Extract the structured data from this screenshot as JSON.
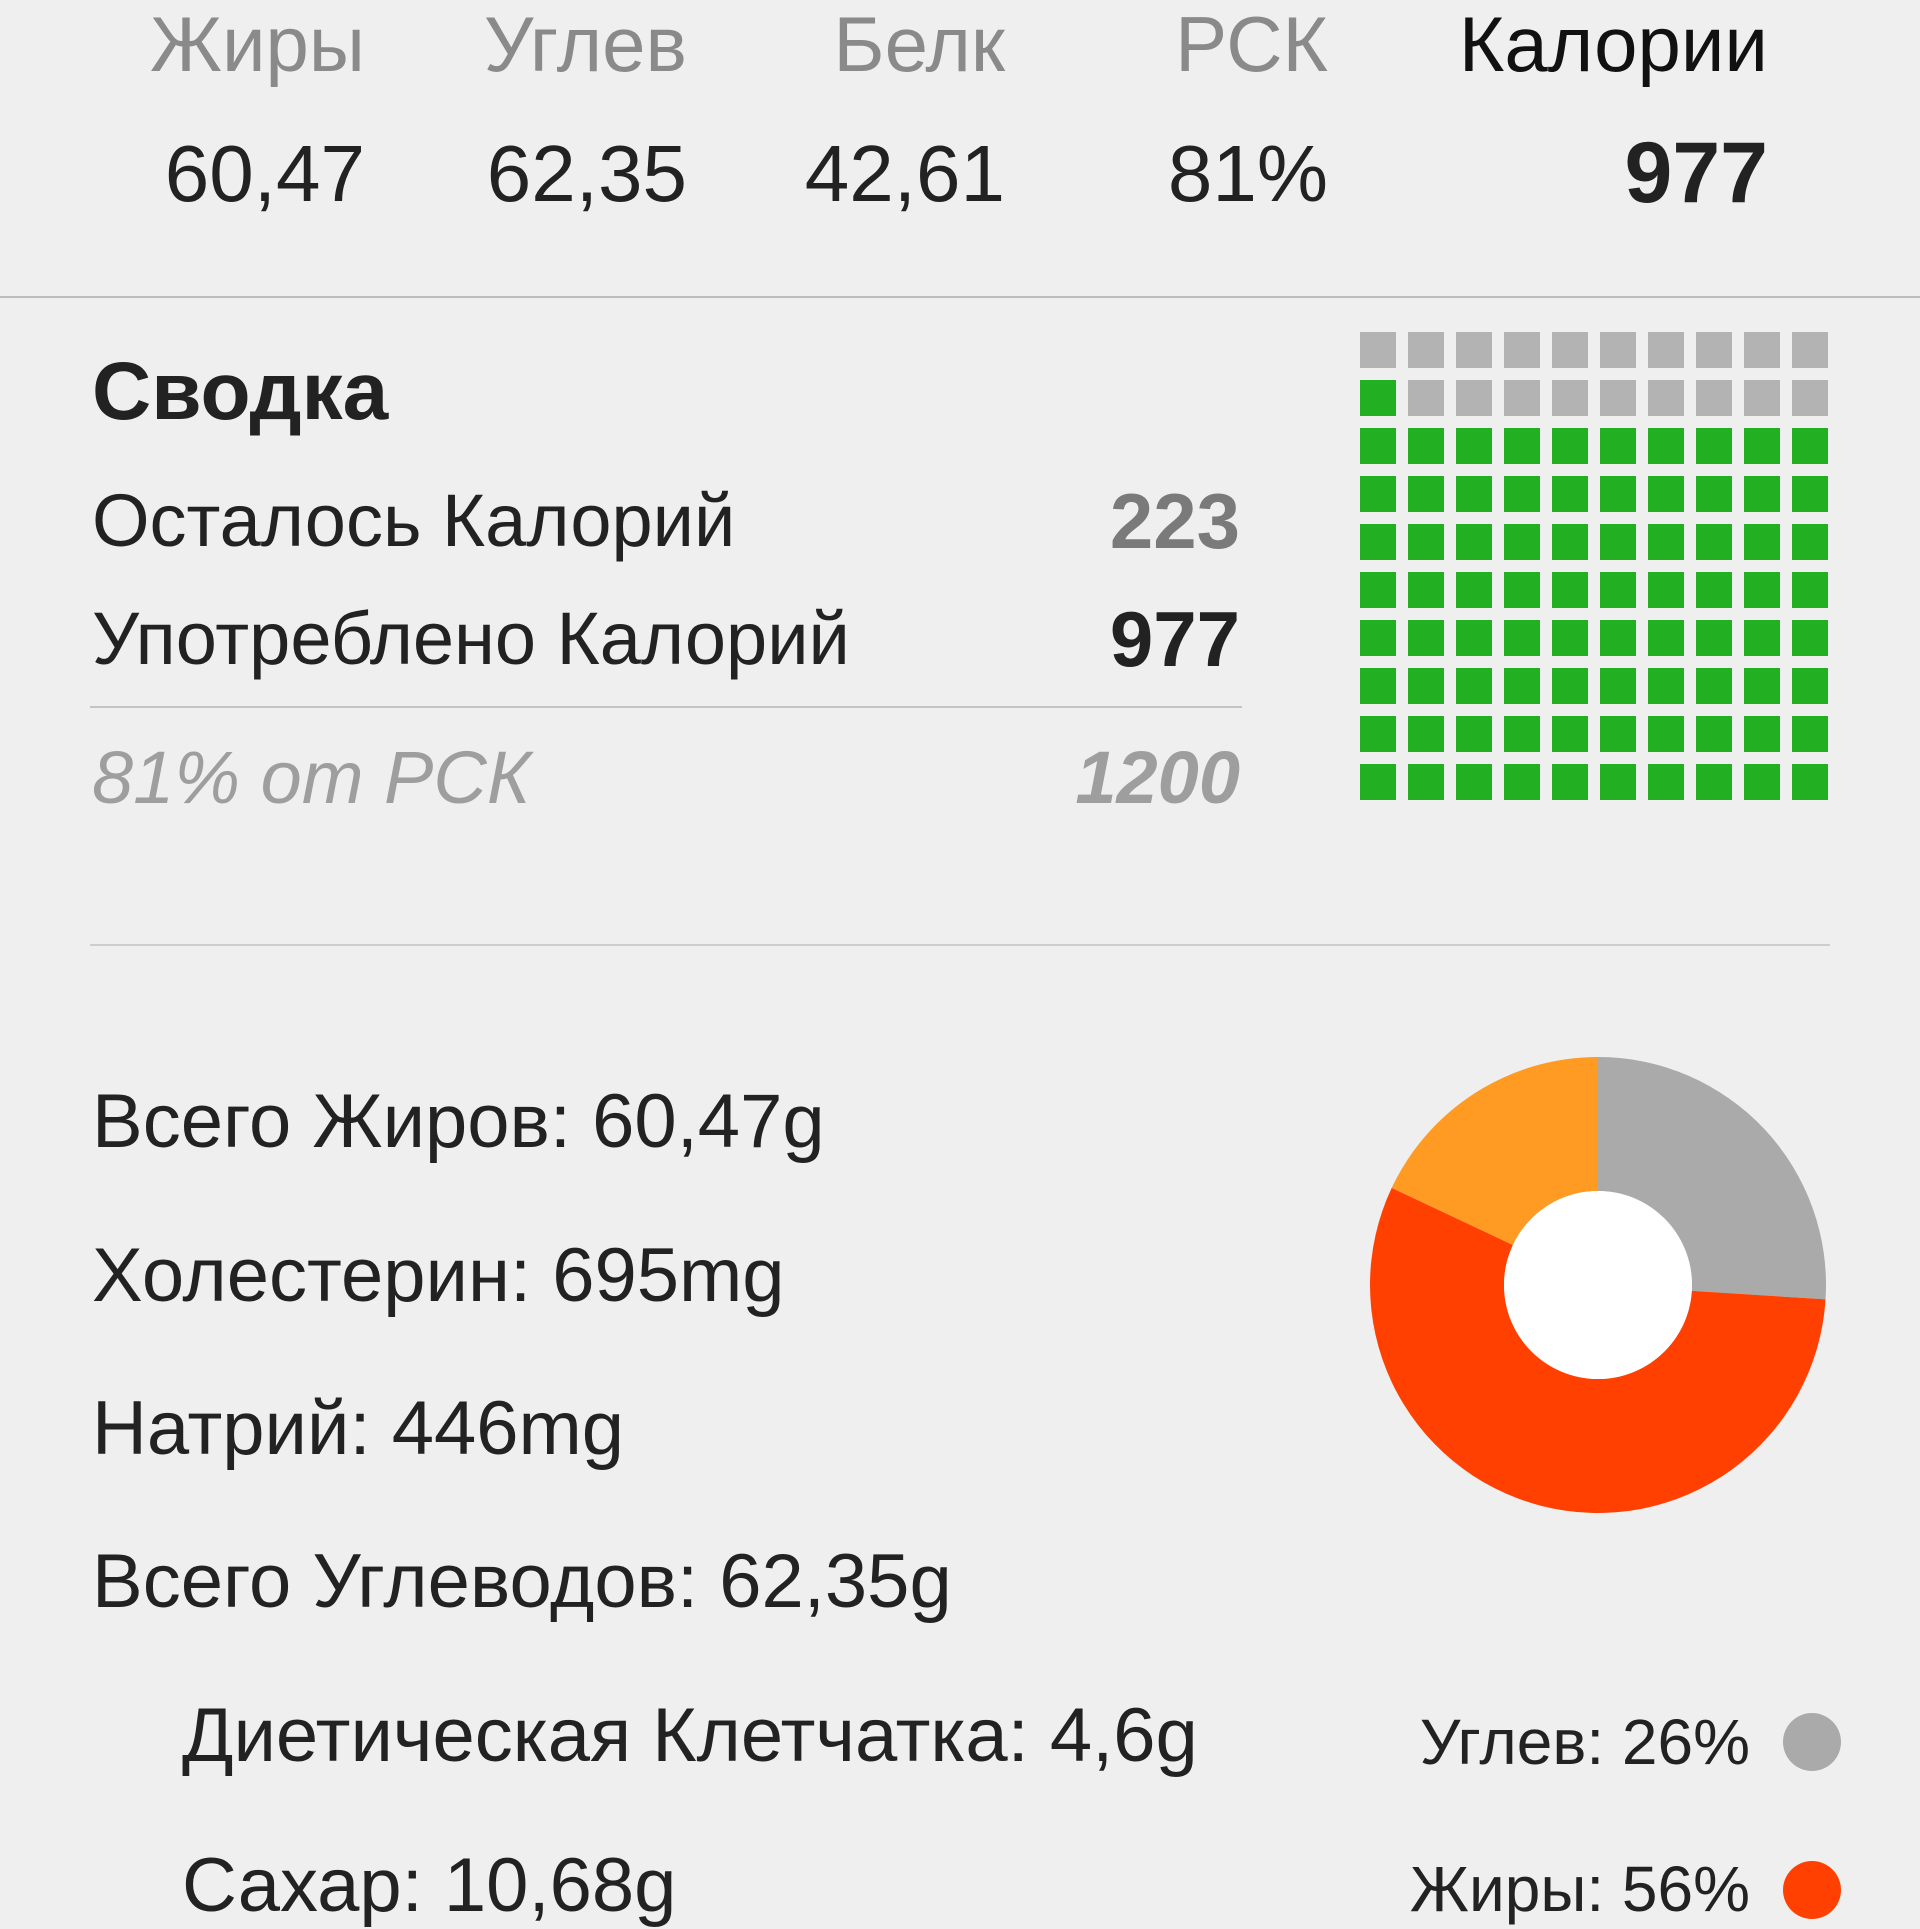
{
  "header": {
    "columns": [
      {
        "label": "Жиры",
        "value": "60,47"
      },
      {
        "label": "Углев",
        "value": "62,35"
      },
      {
        "label": "Белк",
        "value": "42,61"
      },
      {
        "label": "РСК",
        "value": "81%"
      },
      {
        "label": "Калории",
        "value": "977"
      }
    ]
  },
  "summary": {
    "title": "Сводка",
    "remaining_label": "Осталось Калорий",
    "remaining_value": "223",
    "consumed_label": "Употреблено Калорий",
    "consumed_value": "977",
    "percent_label": "81% от РСК",
    "goal_value": "1200",
    "grid": {
      "total_cells": 100,
      "filled_cells": 81,
      "filled_color": "#22b022",
      "empty_color": "#b3b3b3"
    }
  },
  "nutrients": [
    {
      "text": "Всего Жиров: 60,47g",
      "indent": false
    },
    {
      "text": "Холестерин: 695mg",
      "indent": false
    },
    {
      "text": "Натрий: 446mg",
      "indent": false
    },
    {
      "text": "Всего Углеводов: 62,35g",
      "indent": false
    },
    {
      "text": "Диетическая Клетчатка: 4,6g",
      "indent": true
    },
    {
      "text": "Сахар: 10,68g",
      "indent": true
    }
  ],
  "chart_data": {
    "type": "pie",
    "donut": true,
    "slices": [
      {
        "label": "Углев",
        "value": 26,
        "color": "#aaaaaa"
      },
      {
        "label": "Жиры",
        "value": 56,
        "color": "#ff4000"
      },
      {
        "label": "Белк",
        "value": 18,
        "color": "#ff9a22"
      }
    ]
  },
  "legend": [
    {
      "text": "Углев: 26%",
      "color": "#aaaaaa"
    },
    {
      "text": "Жиры: 56%",
      "color": "#ff4000"
    }
  ]
}
